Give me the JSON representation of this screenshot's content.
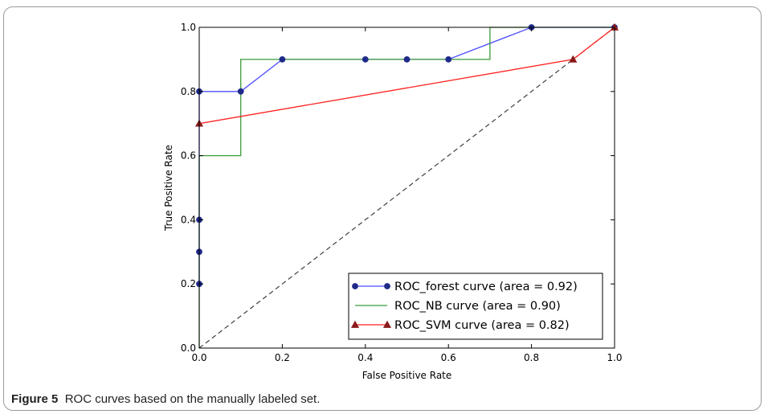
{
  "caption": {
    "label": "Figure 5",
    "text": "ROC curves based on the manually labeled set."
  },
  "chart_data": {
    "type": "line",
    "title": "",
    "xlabel": "False Positive Rate",
    "ylabel": "True Positive Rate",
    "xlim": [
      0.0,
      1.0
    ],
    "ylim": [
      0.0,
      1.0
    ],
    "xticks": [
      "0.0",
      "0.2",
      "0.4",
      "0.6",
      "0.8",
      "1.0"
    ],
    "yticks": [
      "0.0",
      "0.2",
      "0.4",
      "0.6",
      "0.8",
      "1.0"
    ],
    "grid": false,
    "legend_position": "lower right",
    "series": [
      {
        "name": "ROC_forest curve (area = 0.92)",
        "color": "#4c4cff",
        "marker": "circle",
        "marker_color": "#1f2a8a",
        "style": "line",
        "x": [
          0.0,
          0.0,
          0.0,
          0.0,
          0.1,
          0.2,
          0.4,
          0.5,
          0.6,
          0.8,
          1.0
        ],
        "y": [
          0.2,
          0.3,
          0.4,
          0.8,
          0.8,
          0.9,
          0.9,
          0.9,
          0.9,
          1.0,
          1.0
        ]
      },
      {
        "name": "ROC_NB curve (area = 0.90)",
        "color": "#3a9a3a",
        "marker": "none",
        "style": "step",
        "x": [
          0.0,
          0.0,
          0.1,
          0.1,
          0.7,
          0.7,
          1.0
        ],
        "y": [
          0.0,
          0.6,
          0.6,
          0.9,
          0.9,
          1.0,
          1.0
        ]
      },
      {
        "name": "ROC_SVM curve (area = 0.82)",
        "color": "#ff2020",
        "marker": "triangle",
        "marker_color": "#8b1a1a",
        "style": "line",
        "x": [
          0.0,
          0.9,
          1.0
        ],
        "y": [
          0.7,
          0.9,
          1.0
        ]
      }
    ],
    "reference_line": {
      "style": "dashed",
      "color": "#404040",
      "x": [
        0.0,
        1.0
      ],
      "y": [
        0.0,
        1.0
      ]
    }
  }
}
